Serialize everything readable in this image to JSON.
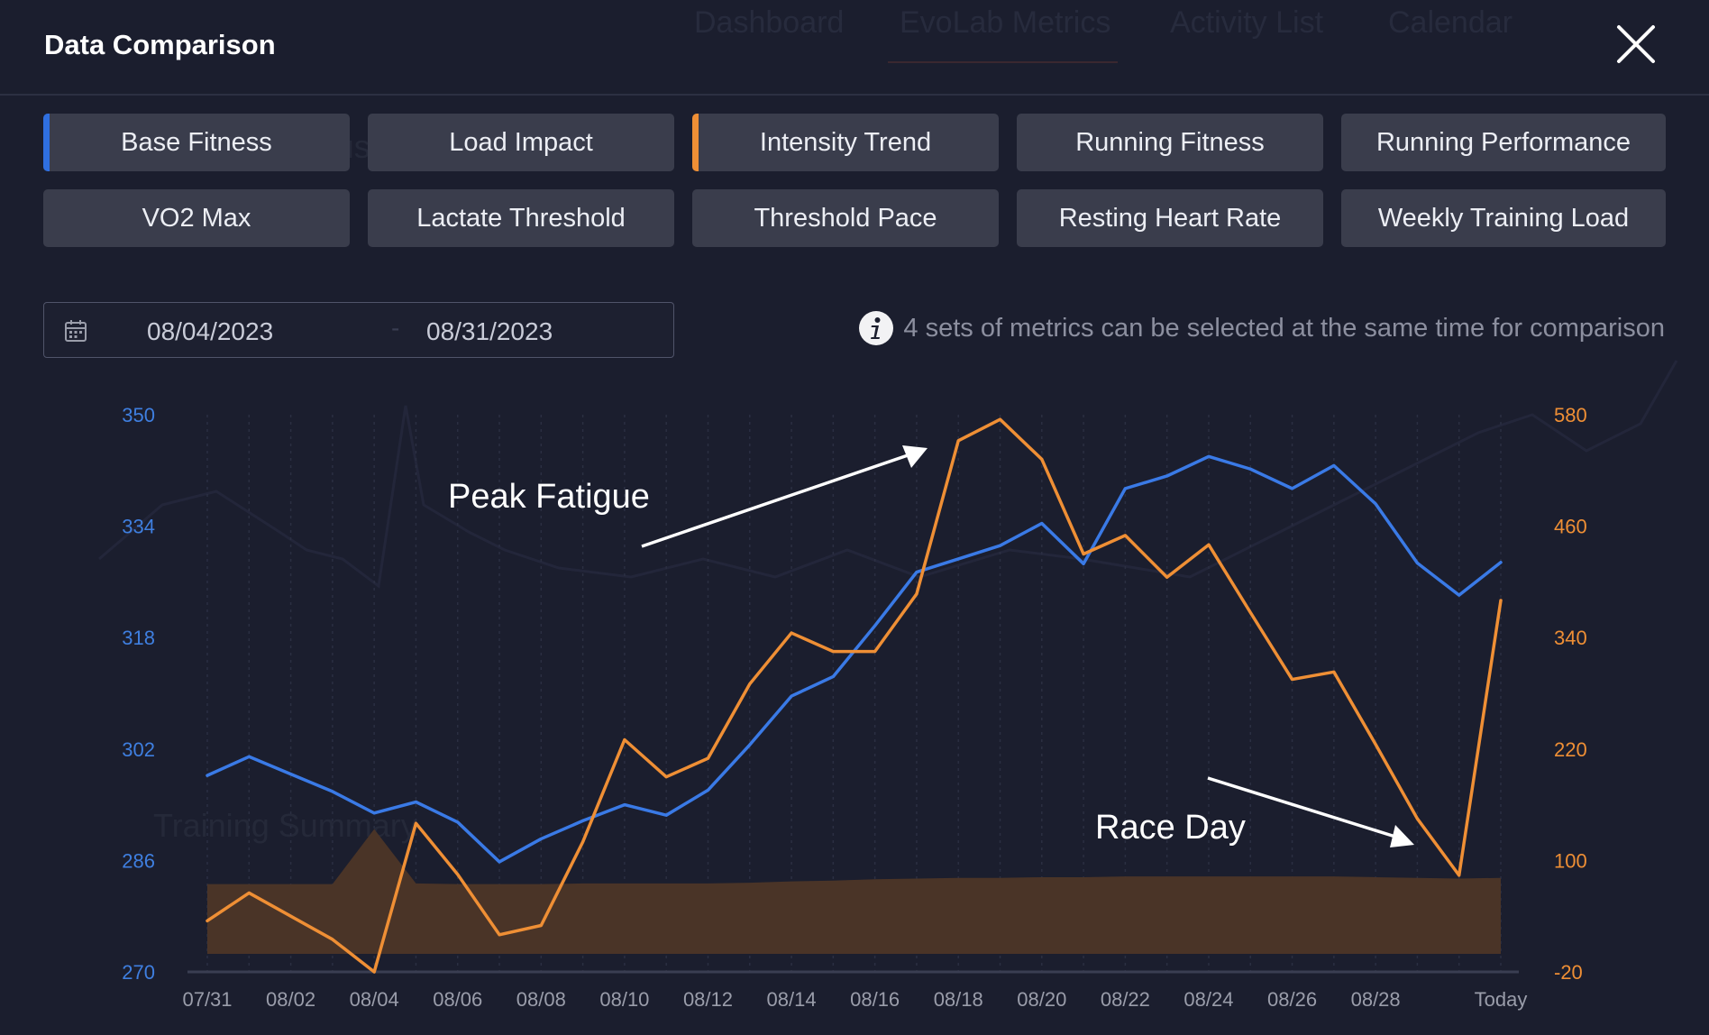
{
  "dialog": {
    "title": "Data Comparison"
  },
  "background": {
    "nav_tabs": [
      "Dashboard",
      "EvoLab Metrics",
      "Activity List",
      "Calendar"
    ],
    "ghost_texts": [
      "Training Status",
      "Training Summary"
    ]
  },
  "metric_buttons": [
    {
      "label": "Base Fitness",
      "selected": true,
      "accent": "#2f6fe0"
    },
    {
      "label": "Load Impact",
      "selected": false
    },
    {
      "label": "Intensity Trend",
      "selected": true,
      "accent": "#ef8f35"
    },
    {
      "label": "Running Fitness",
      "selected": false
    },
    {
      "label": "Running Performance",
      "selected": false
    },
    {
      "label": "VO2 Max",
      "selected": false
    },
    {
      "label": "Lactate Threshold",
      "selected": false
    },
    {
      "label": "Threshold Pace",
      "selected": false
    },
    {
      "label": "Resting Heart Rate",
      "selected": false
    },
    {
      "label": "Weekly Training Load",
      "selected": false
    }
  ],
  "date_range": {
    "start": "08/04/2023",
    "separator": "-",
    "end": "08/31/2023",
    "icon": "calendar-icon"
  },
  "info_note": {
    "icon": "info-icon",
    "text": "4 sets of metrics can be selected at the same time for comparison"
  },
  "chart_data": {
    "type": "line",
    "x_ticks": [
      "07/31",
      "08/02",
      "08/04",
      "08/06",
      "08/08",
      "08/10",
      "08/12",
      "08/14",
      "08/16",
      "08/18",
      "08/20",
      "08/22",
      "08/24",
      "08/26",
      "08/28",
      "Today"
    ],
    "x": [
      "07/31",
      "08/01",
      "08/02",
      "08/03",
      "08/04",
      "08/05",
      "08/06",
      "08/07",
      "08/08",
      "08/09",
      "08/10",
      "08/11",
      "08/12",
      "08/13",
      "08/14",
      "08/15",
      "08/16",
      "08/17",
      "08/18",
      "08/19",
      "08/20",
      "08/21",
      "08/22",
      "08/23",
      "08/24",
      "08/25",
      "08/26",
      "08/27",
      "08/28",
      "08/29",
      "08/30",
      "Today"
    ],
    "left_axis": {
      "ticks": [
        270,
        286,
        302,
        318,
        334,
        350
      ],
      "range": [
        270,
        350
      ],
      "color": "#3f7fe0"
    },
    "right_axis": {
      "ticks": [
        -20,
        100,
        220,
        340,
        460,
        580
      ],
      "range": [
        -20,
        580
      ],
      "color": "#ef8f35"
    },
    "series": [
      {
        "axis": "left",
        "color": "#3a7ae6",
        "values": [
          298.2,
          300.9,
          298.4,
          295.9,
          292.8,
          294.4,
          291.5,
          285.8,
          289.1,
          291.7,
          294.0,
          292.5,
          296.1,
          302.6,
          309.6,
          312.4,
          319.7,
          327.4,
          329.3,
          331.2,
          334.4,
          328.6,
          339.4,
          341.2,
          344.0,
          342.2,
          339.4,
          342.7,
          337.2,
          328.7,
          324.1,
          328.8
        ]
      },
      {
        "axis": "right",
        "color": "#ef8f35",
        "values": [
          35,
          65,
          40,
          15,
          -20,
          140,
          85,
          20,
          30,
          120,
          230,
          190,
          210,
          290,
          345,
          325,
          325,
          387,
          552,
          575,
          532,
          430,
          450,
          405,
          440,
          367,
          295,
          303,
          225,
          145,
          84,
          380
        ]
      },
      {
        "axis": "left",
        "type": "area",
        "color": "#4a3427",
        "values": [
          282.6,
          282.6,
          282.6,
          282.6,
          290.5,
          282.7,
          282.6,
          282.6,
          282.6,
          282.7,
          282.7,
          282.7,
          282.7,
          282.8,
          283.0,
          283.1,
          283.3,
          283.4,
          283.5,
          283.5,
          283.6,
          283.6,
          283.7,
          283.7,
          283.7,
          283.7,
          283.7,
          283.7,
          283.6,
          283.5,
          283.4,
          283.5
        ]
      }
    ],
    "annotations": [
      {
        "text": "Peak Fatigue"
      },
      {
        "text": "Race Day"
      }
    ]
  }
}
